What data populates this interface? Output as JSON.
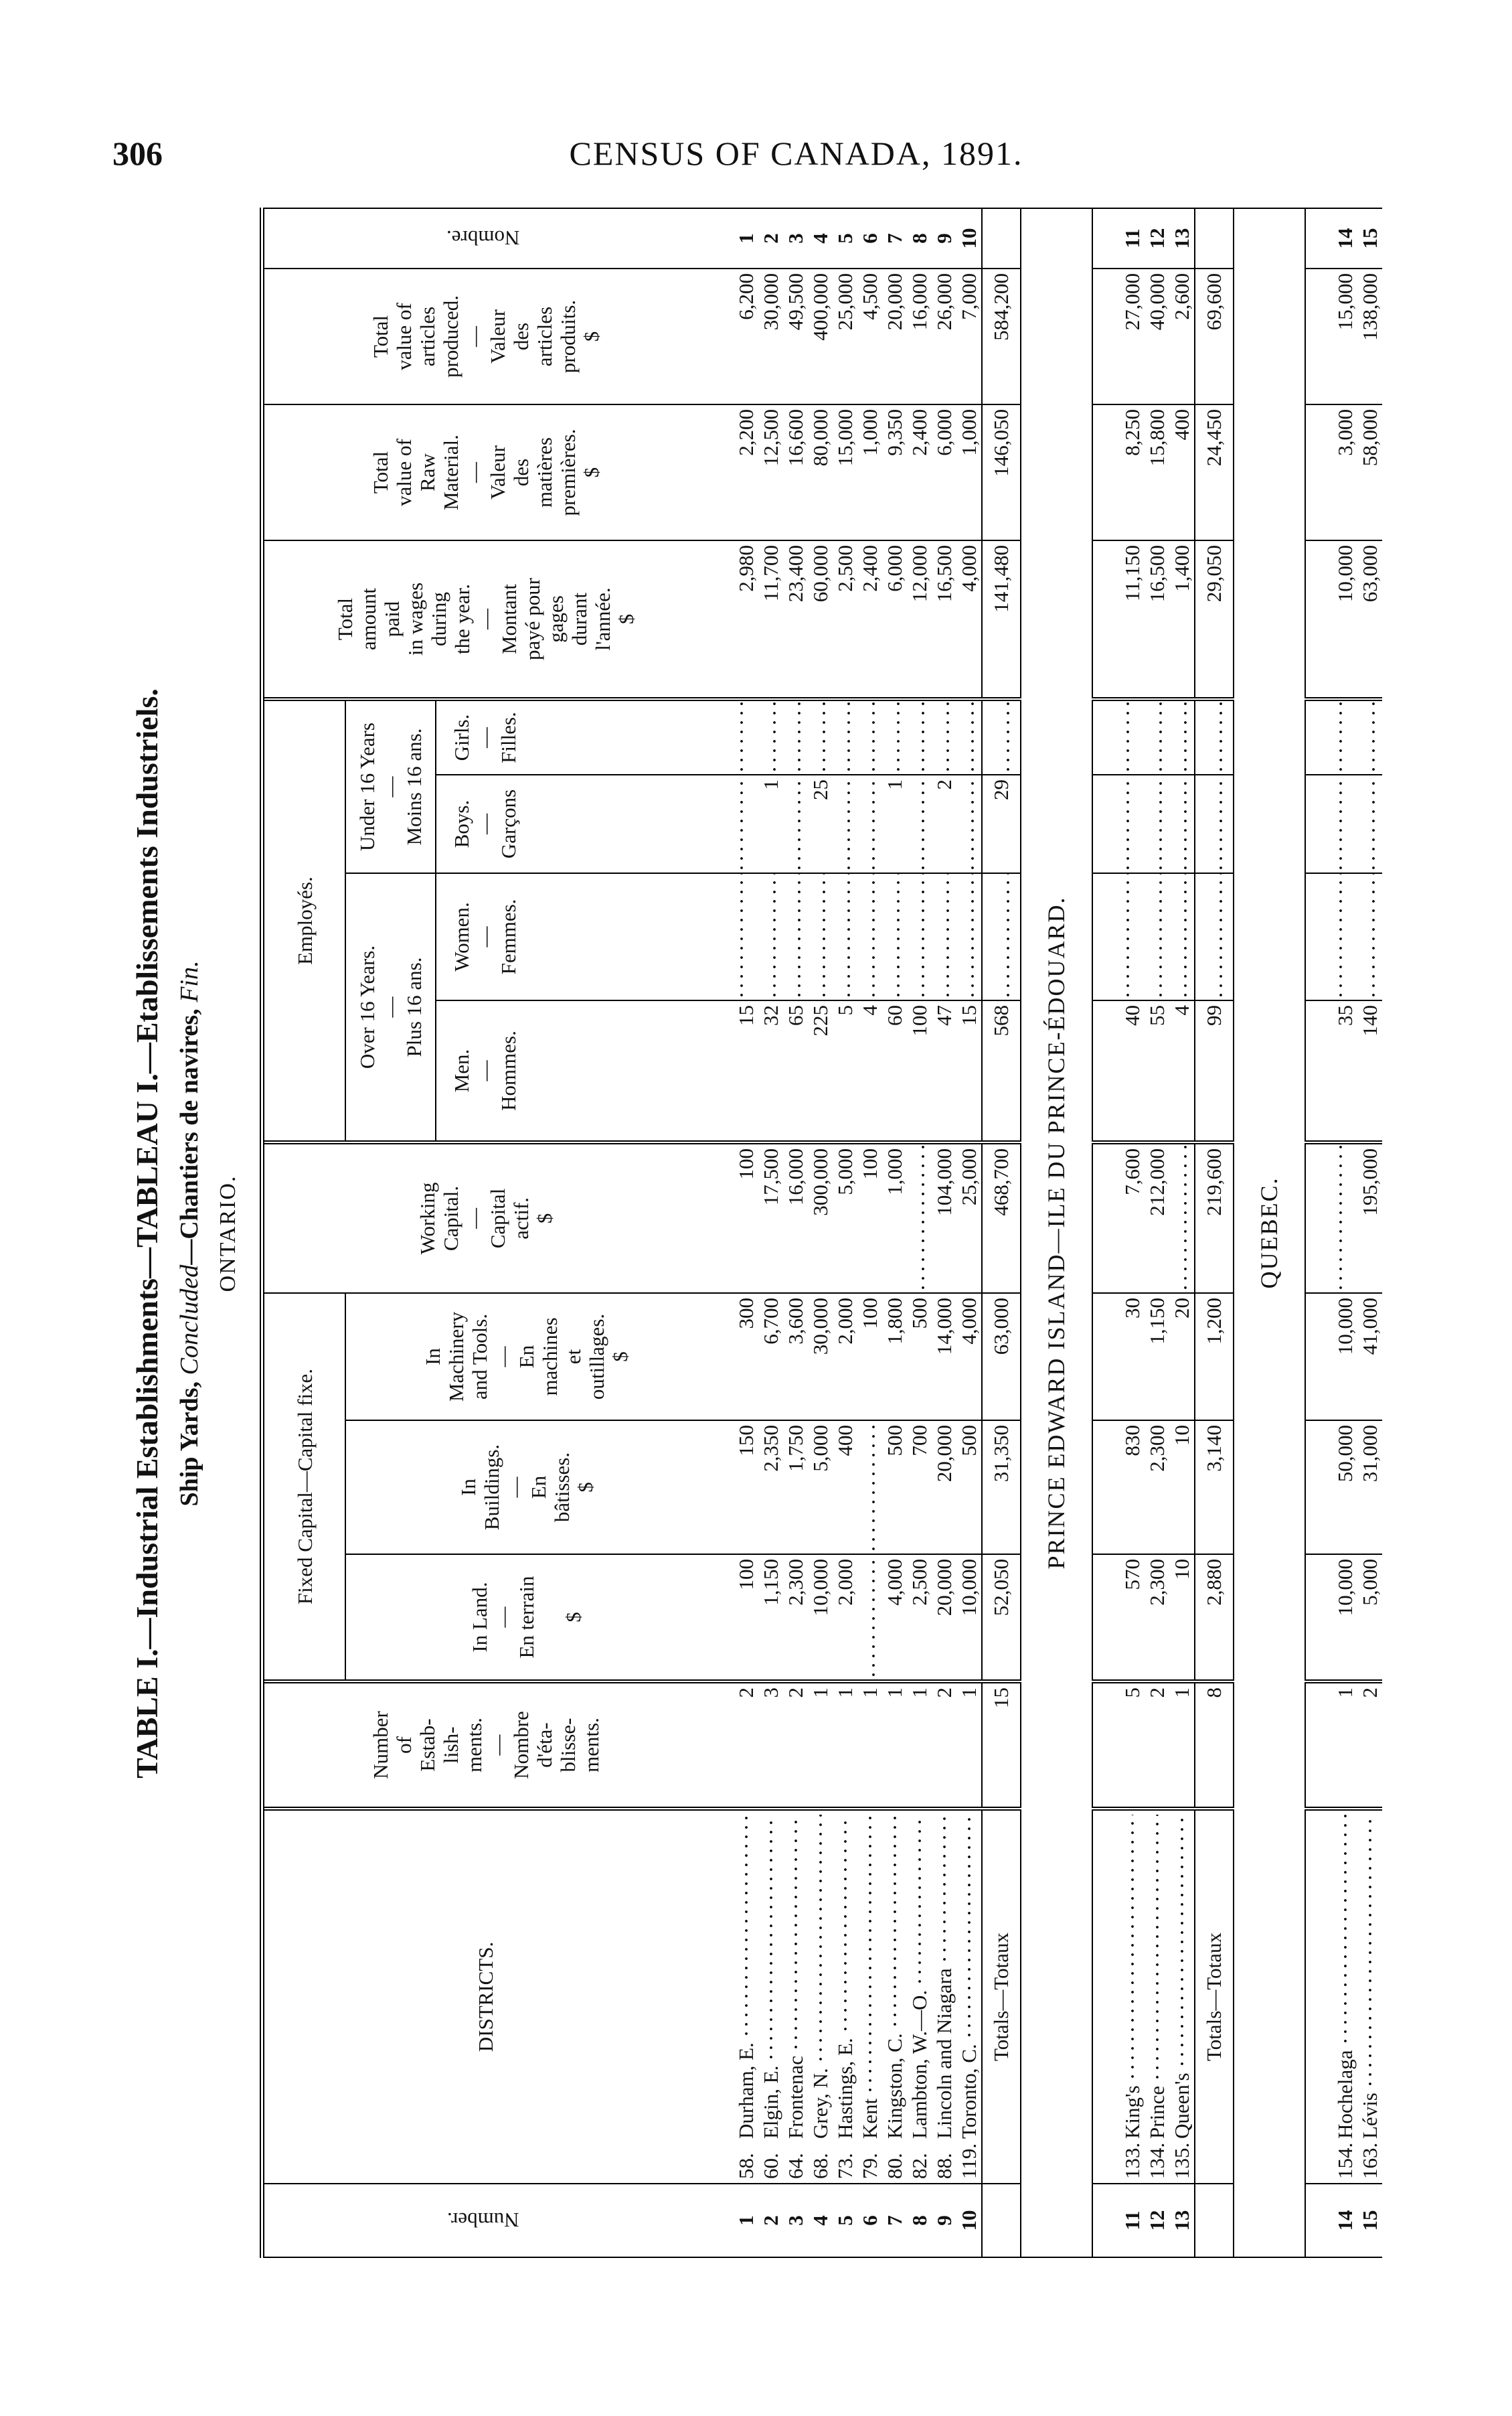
{
  "page": {
    "number": "306",
    "running_head": "CENSUS OF CANADA, 1891."
  },
  "title": {
    "line1": "TABLE I.—Industrial Establishments—TABLEAU I.—Etablissements Industriels.",
    "line2_a": "Ship Yards, ",
    "line2_b": "Concluded",
    "line2_c": "—Chantiers de navires, ",
    "line2_d": "Fin.",
    "province": "ONTARIO."
  },
  "headers": {
    "number": "Number.",
    "districts": "DISTRICTS.",
    "estab": "Number\nof\nEstab-\nlish-\nments.\n—\nNombre\nd'éta-\nblisse-\nments.",
    "fixed_capital": "Fixed Capital—Capital fixe.",
    "land": "In Land.\n—\nEn terrain\n\n$",
    "buildings": "In\nBuildings.\n—\nEn\nbâtisses.\n$",
    "machinery": "In\nMachinery\nand Tools.\n—\nEn\nmachines\net\noutillages.\n$",
    "working": "Working\nCapital.\n—\nCapital\nactif.\n$",
    "employes": "Employés.",
    "over16": "Over 16 Years.\n—\nPlus 16 ans.",
    "under16": "Under 16 Years\n—\nMoins 16 ans.",
    "men": "Men.\n—\nHommes.",
    "women": "Women.\n—\nFemmes.",
    "boys": "Boys.\n—\nGarçons",
    "girls": "Girls.\n—\nFilles.",
    "wages": "Total\namount\npaid\nin wages\nduring\nthe year.\n—\nMontant\npayé pour\ngages\ndurant\nl'année.\n$",
    "raw": "Total\nvalue of\nRaw\nMaterial.\n—\nValeur\ndes\nmatières\npremières.\n$",
    "produced": "Total\nvalue of\narticles\nproduced.\n—\nValeur\ndes\narticles\nproduits.\n$",
    "nombre": "Nombre."
  },
  "sections": [
    {
      "label": "",
      "rows": [
        {
          "num": "1",
          "code": "58.",
          "district": "Durham, E.",
          "estab": "2",
          "land": "100",
          "buildings": "150",
          "machinery": "300",
          "working": "100",
          "men": "15",
          "women": "",
          "boys": "",
          "girls": "",
          "wages": "2,980",
          "raw": "2,200",
          "produced": "6,200"
        },
        {
          "num": "2",
          "code": "60.",
          "district": "Elgin, E.",
          "estab": "3",
          "land": "1,150",
          "buildings": "2,350",
          "machinery": "6,700",
          "working": "17,500",
          "men": "32",
          "women": "",
          "boys": "1",
          "girls": "",
          "wages": "11,700",
          "raw": "12,500",
          "produced": "30,000"
        },
        {
          "num": "3",
          "code": "64.",
          "district": "Frontenac",
          "estab": "2",
          "land": "2,300",
          "buildings": "1,750",
          "machinery": "3,600",
          "working": "16,000",
          "men": "65",
          "women": "",
          "boys": "",
          "girls": "",
          "wages": "23,400",
          "raw": "16,600",
          "produced": "49,500"
        },
        {
          "num": "4",
          "code": "68.",
          "district": "Grey, N.",
          "estab": "1",
          "land": "10,000",
          "buildings": "5,000",
          "machinery": "30,000",
          "working": "300,000",
          "men": "225",
          "women": "",
          "boys": "25",
          "girls": "",
          "wages": "60,000",
          "raw": "80,000",
          "produced": "400,000"
        },
        {
          "num": "5",
          "code": "73.",
          "district": "Hastings, E.",
          "estab": "1",
          "land": "2,000",
          "buildings": "400",
          "machinery": "2,000",
          "working": "5,000",
          "men": "5",
          "women": "",
          "boys": "",
          "girls": "",
          "wages": "2,500",
          "raw": "15,000",
          "produced": "25,000"
        },
        {
          "num": "6",
          "code": "79.",
          "district": "Kent",
          "estab": "1",
          "land": "",
          "buildings": "",
          "machinery": "100",
          "working": "100",
          "men": "4",
          "women": "",
          "boys": "",
          "girls": "",
          "wages": "2,400",
          "raw": "1,000",
          "produced": "4,500"
        },
        {
          "num": "7",
          "code": "80.",
          "district": "Kingston, C.",
          "estab": "1",
          "land": "4,000",
          "buildings": "500",
          "machinery": "1,800",
          "working": "1,000",
          "men": "60",
          "women": "",
          "boys": "1",
          "girls": "",
          "wages": "6,000",
          "raw": "9,350",
          "produced": "20,000"
        },
        {
          "num": "8",
          "code": "82.",
          "district": "Lambton, W.—O.",
          "estab": "1",
          "land": "2,500",
          "buildings": "700",
          "machinery": "500",
          "working": "",
          "men": "100",
          "women": "",
          "boys": "",
          "girls": "",
          "wages": "12,000",
          "raw": "2,400",
          "produced": "16,000"
        },
        {
          "num": "9",
          "code": "88.",
          "district": "Lincoln and Niagara",
          "estab": "2",
          "land": "20,000",
          "buildings": "20,000",
          "machinery": "14,000",
          "working": "104,000",
          "men": "47",
          "women": "",
          "boys": "2",
          "girls": "",
          "wages": "16,500",
          "raw": "6,000",
          "produced": "26,000"
        },
        {
          "num": "10",
          "code": "119.",
          "district": "Toronto, C.",
          "estab": "1",
          "land": "10,000",
          "buildings": "500",
          "machinery": "4,000",
          "working": "25,000",
          "men": "15",
          "women": "",
          "boys": "",
          "girls": "",
          "wages": "4,000",
          "raw": "1,000",
          "produced": "7,000"
        }
      ],
      "totals": {
        "label": "Totals—Totaux",
        "estab": "15",
        "land": "52,050",
        "buildings": "31,350",
        "machinery": "63,000",
        "working": "468,700",
        "men": "568",
        "women": "",
        "boys": "29",
        "girls": "",
        "wages": "141,480",
        "raw": "146,050",
        "produced": "584,200"
      }
    },
    {
      "label": "PRINCE EDWARD ISLAND—ILE DU PRINCE-ÉDOUARD.",
      "rows": [
        {
          "num": "11",
          "code": "133.",
          "district": "King's",
          "estab": "5",
          "land": "570",
          "buildings": "830",
          "machinery": "30",
          "working": "7,600",
          "men": "40",
          "women": "",
          "boys": "",
          "girls": "",
          "wages": "11,150",
          "raw": "8,250",
          "produced": "27,000"
        },
        {
          "num": "12",
          "code": "134.",
          "district": "Prince",
          "estab": "2",
          "land": "2,300",
          "buildings": "2,300",
          "machinery": "1,150",
          "working": "212,000",
          "men": "55",
          "women": "",
          "boys": "",
          "girls": "",
          "wages": "16,500",
          "raw": "15,800",
          "produced": "40,000"
        },
        {
          "num": "13",
          "code": "135.",
          "district": "Queen's",
          "estab": "1",
          "land": "10",
          "buildings": "10",
          "machinery": "20",
          "working": "",
          "men": "4",
          "women": "",
          "boys": "",
          "girls": "",
          "wages": "1,400",
          "raw": "400",
          "produced": "2,600"
        }
      ],
      "totals": {
        "label": "Totals—Totaux",
        "estab": "8",
        "land": "2,880",
        "buildings": "3,140",
        "machinery": "1,200",
        "working": "219,600",
        "men": "99",
        "women": "",
        "boys": "",
        "girls": "",
        "wages": "29,050",
        "raw": "24,450",
        "produced": "69,600"
      }
    },
    {
      "label": "QUEBEC.",
      "rows": [
        {
          "num": "14",
          "code": "154.",
          "district": "Hochelaga",
          "estab": "1",
          "land": "10,000",
          "buildings": "50,000",
          "machinery": "10,000",
          "working": "",
          "men": "35",
          "women": "",
          "boys": "",
          "girls": "",
          "wages": "10,000",
          "raw": "3,000",
          "produced": "15,000"
        },
        {
          "num": "15",
          "code": "163.",
          "district": "Lévis",
          "estab": "2",
          "land": "5,000",
          "buildings": "31,000",
          "machinery": "41,000",
          "working": "195,000",
          "men": "140",
          "women": "",
          "boys": "",
          "girls": "",
          "wages": "63,000",
          "raw": "58,000",
          "produced": "138,000"
        }
      ]
    }
  ]
}
